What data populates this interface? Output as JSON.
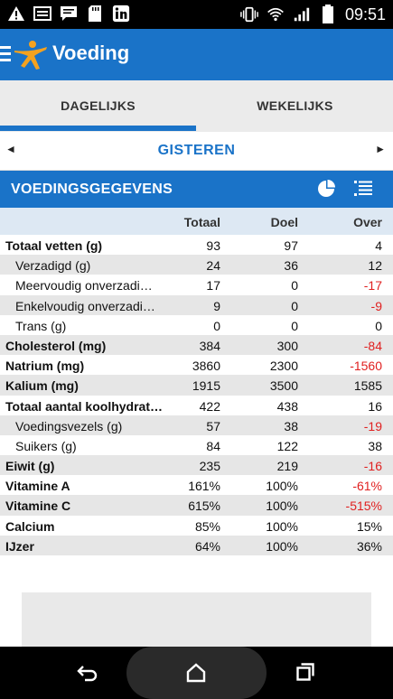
{
  "status_bar": {
    "time": "09:51",
    "left_icons": [
      "warning-icon",
      "image-icon",
      "message-icon",
      "sd-card-icon",
      "linkedin-icon"
    ],
    "right_icons": [
      "vibrate-icon",
      "wifi-icon",
      "signal-icon",
      "battery-icon"
    ]
  },
  "app_bar": {
    "title": "Voeding"
  },
  "tabs": [
    {
      "label": "DAGELIJKS",
      "active": true
    },
    {
      "label": "WEKELIJKS",
      "active": false
    }
  ],
  "day_nav": {
    "label": "GISTEREN",
    "prev_symbol": "◄",
    "next_symbol": "►"
  },
  "section": {
    "title": "VOEDINGSGEGEVENS"
  },
  "columns": {
    "total": "Totaal",
    "goal": "Doel",
    "over": "Over"
  },
  "rows": [
    {
      "name": "Totaal vetten (g)",
      "total": "93",
      "goal": "97",
      "over": "4",
      "bold": true,
      "sub": false,
      "negative": false
    },
    {
      "name": "Verzadigd (g)",
      "total": "24",
      "goal": "36",
      "over": "12",
      "bold": false,
      "sub": true,
      "negative": false
    },
    {
      "name": "Meervoudig onverzadi…",
      "total": "17",
      "goal": "0",
      "over": "-17",
      "bold": false,
      "sub": true,
      "negative": true
    },
    {
      "name": "Enkelvoudig onverzadi…",
      "total": "9",
      "goal": "0",
      "over": "-9",
      "bold": false,
      "sub": true,
      "negative": true
    },
    {
      "name": "Trans (g)",
      "total": "0",
      "goal": "0",
      "over": "0",
      "bold": false,
      "sub": true,
      "negative": false
    },
    {
      "name": "Cholesterol (mg)",
      "total": "384",
      "goal": "300",
      "over": "-84",
      "bold": true,
      "sub": false,
      "negative": true
    },
    {
      "name": "Natrium (mg)",
      "total": "3860",
      "goal": "2300",
      "over": "-1560",
      "bold": true,
      "sub": false,
      "negative": true
    },
    {
      "name": "Kalium (mg)",
      "total": "1915",
      "goal": "3500",
      "over": "1585",
      "bold": true,
      "sub": false,
      "negative": false
    },
    {
      "name": "Totaal aantal koolhydrat…",
      "total": "422",
      "goal": "438",
      "over": "16",
      "bold": true,
      "sub": false,
      "negative": false
    },
    {
      "name": "Voedingsvezels (g)",
      "total": "57",
      "goal": "38",
      "over": "-19",
      "bold": false,
      "sub": true,
      "negative": true
    },
    {
      "name": "Suikers (g)",
      "total": "84",
      "goal": "122",
      "over": "38",
      "bold": false,
      "sub": true,
      "negative": false
    },
    {
      "name": "Eiwit (g)",
      "total": "235",
      "goal": "219",
      "over": "-16",
      "bold": true,
      "sub": false,
      "negative": true
    },
    {
      "name": "Vitamine A",
      "total": "161%",
      "goal": "100%",
      "over": "-61%",
      "bold": true,
      "sub": false,
      "negative": true
    },
    {
      "name": "Vitamine C",
      "total": "615%",
      "goal": "100%",
      "over": "-515%",
      "bold": true,
      "sub": false,
      "negative": true
    },
    {
      "name": "Calcium",
      "total": "85%",
      "goal": "100%",
      "over": "15%",
      "bold": true,
      "sub": false,
      "negative": false
    },
    {
      "name": "IJzer",
      "total": "64%",
      "goal": "100%",
      "over": "36%",
      "bold": true,
      "sub": false,
      "negative": false
    }
  ],
  "colors": {
    "primary": "#1a73c8",
    "negative": "#e02020",
    "header_row": "#dde8f3",
    "alt_row": "#e6e6e6"
  }
}
